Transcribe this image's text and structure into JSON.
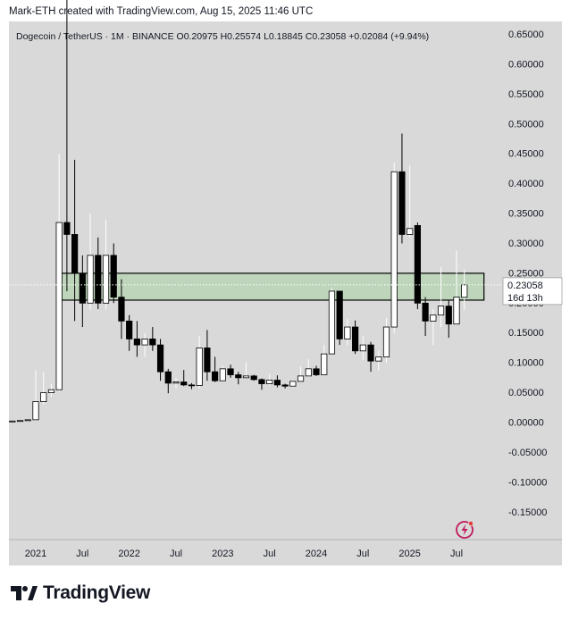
{
  "credit": "Mark-ETH created with TradingView.com, Aug 15, 2025 11:46 UTC",
  "legend": {
    "symbol": "Dogecoin / TetherUS · 1M · BINANCE",
    "open": "O0.20975",
    "high": "H0.25574",
    "low": "L0.18845",
    "close": "C0.23058",
    "change": "+0.02084 (+9.94%)"
  },
  "price_label": {
    "value": "0.23058",
    "countdown": "16d 13h"
  },
  "brand": {
    "wordmark": "TradingView",
    "logo_icon": "tradingview-logo-icon"
  },
  "colors": {
    "background": "#d9d9d9",
    "bull": "#ffffff",
    "bear": "#000000",
    "zone": "#b9d4b5"
  },
  "chart_data": {
    "type": "candlestick",
    "interval": "1M",
    "y_axis": {
      "min": -0.17,
      "max": 0.66,
      "ticks": [
        0.65,
        0.6,
        0.55,
        0.5,
        0.45,
        0.4,
        0.35,
        0.3,
        0.25,
        0.2,
        0.15,
        0.1,
        0.05,
        0.0,
        -0.05,
        -0.1,
        -0.15
      ],
      "tick_labels": [
        "0.65000",
        "0.60000",
        "0.55000",
        "0.50000",
        "0.45000",
        "0.40000",
        "0.35000",
        "0.30000",
        "0.25000",
        "0.20000",
        "0.15000",
        "0.10000",
        "0.05000",
        "0.00000",
        "-0.05000",
        "-0.10000",
        "-0.15000"
      ]
    },
    "x_axis": {
      "labels": [
        "2021",
        "Jul",
        "2022",
        "Jul",
        "2023",
        "Jul",
        "2024",
        "Jul",
        "2025",
        "Jul"
      ],
      "label_months": [
        "2021-01",
        "2021-07",
        "2022-01",
        "2022-07",
        "2023-01",
        "2023-07",
        "2024-01",
        "2024-07",
        "2025-01",
        "2025-07"
      ]
    },
    "grid": false,
    "zone": {
      "low": 0.205,
      "high": 0.25
    },
    "candles": [
      {
        "t": "2020-10",
        "o": 0.0026,
        "h": 0.0033,
        "l": 0.0024,
        "c": 0.0026
      },
      {
        "t": "2020-11",
        "o": 0.0026,
        "h": 0.0036,
        "l": 0.0025,
        "c": 0.0034
      },
      {
        "t": "2020-12",
        "o": 0.0034,
        "h": 0.0053,
        "l": 0.0033,
        "c": 0.0047
      },
      {
        "t": "2021-01",
        "o": 0.0047,
        "h": 0.087,
        "l": 0.0046,
        "c": 0.035
      },
      {
        "t": "2021-02",
        "o": 0.035,
        "h": 0.085,
        "l": 0.03,
        "c": 0.05
      },
      {
        "t": "2021-03",
        "o": 0.05,
        "h": 0.065,
        "l": 0.043,
        "c": 0.055
      },
      {
        "t": "2021-04",
        "o": 0.055,
        "h": 0.45,
        "l": 0.052,
        "c": 0.335
      },
      {
        "t": "2021-05",
        "o": 0.335,
        "h": 0.75,
        "l": 0.22,
        "c": 0.315
      },
      {
        "t": "2021-06",
        "o": 0.315,
        "h": 0.44,
        "l": 0.17,
        "c": 0.25
      },
      {
        "t": "2021-07",
        "o": 0.25,
        "h": 0.28,
        "l": 0.16,
        "c": 0.2
      },
      {
        "t": "2021-08",
        "o": 0.2,
        "h": 0.35,
        "l": 0.19,
        "c": 0.28
      },
      {
        "t": "2021-09",
        "o": 0.28,
        "h": 0.31,
        "l": 0.19,
        "c": 0.2
      },
      {
        "t": "2021-10",
        "o": 0.2,
        "h": 0.34,
        "l": 0.19,
        "c": 0.28
      },
      {
        "t": "2021-11",
        "o": 0.28,
        "h": 0.3,
        "l": 0.2,
        "c": 0.21
      },
      {
        "t": "2021-12",
        "o": 0.21,
        "h": 0.24,
        "l": 0.14,
        "c": 0.17
      },
      {
        "t": "2022-01",
        "o": 0.17,
        "h": 0.18,
        "l": 0.12,
        "c": 0.14
      },
      {
        "t": "2022-02",
        "o": 0.14,
        "h": 0.17,
        "l": 0.11,
        "c": 0.13
      },
      {
        "t": "2022-03",
        "o": 0.13,
        "h": 0.15,
        "l": 0.11,
        "c": 0.14
      },
      {
        "t": "2022-04",
        "o": 0.14,
        "h": 0.16,
        "l": 0.12,
        "c": 0.13
      },
      {
        "t": "2022-05",
        "o": 0.13,
        "h": 0.14,
        "l": 0.07,
        "c": 0.085
      },
      {
        "t": "2022-06",
        "o": 0.085,
        "h": 0.09,
        "l": 0.049,
        "c": 0.066
      },
      {
        "t": "2022-07",
        "o": 0.066,
        "h": 0.075,
        "l": 0.058,
        "c": 0.068
      },
      {
        "t": "2022-08",
        "o": 0.068,
        "h": 0.088,
        "l": 0.061,
        "c": 0.063
      },
      {
        "t": "2022-09",
        "o": 0.063,
        "h": 0.066,
        "l": 0.056,
        "c": 0.062
      },
      {
        "t": "2022-10",
        "o": 0.062,
        "h": 0.145,
        "l": 0.057,
        "c": 0.125
      },
      {
        "t": "2022-11",
        "o": 0.125,
        "h": 0.155,
        "l": 0.07,
        "c": 0.085
      },
      {
        "t": "2022-12",
        "o": 0.085,
        "h": 0.11,
        "l": 0.068,
        "c": 0.07
      },
      {
        "t": "2023-01",
        "o": 0.07,
        "h": 0.095,
        "l": 0.07,
        "c": 0.09
      },
      {
        "t": "2023-02",
        "o": 0.09,
        "h": 0.097,
        "l": 0.075,
        "c": 0.08
      },
      {
        "t": "2023-03",
        "o": 0.08,
        "h": 0.085,
        "l": 0.064,
        "c": 0.075
      },
      {
        "t": "2023-04",
        "o": 0.075,
        "h": 0.1,
        "l": 0.074,
        "c": 0.078
      },
      {
        "t": "2023-05",
        "o": 0.078,
        "h": 0.08,
        "l": 0.07,
        "c": 0.072
      },
      {
        "t": "2023-06",
        "o": 0.072,
        "h": 0.074,
        "l": 0.055,
        "c": 0.065
      },
      {
        "t": "2023-07",
        "o": 0.065,
        "h": 0.081,
        "l": 0.062,
        "c": 0.071
      },
      {
        "t": "2023-08",
        "o": 0.071,
        "h": 0.079,
        "l": 0.059,
        "c": 0.063
      },
      {
        "t": "2023-09",
        "o": 0.063,
        "h": 0.065,
        "l": 0.057,
        "c": 0.061
      },
      {
        "t": "2023-10",
        "o": 0.061,
        "h": 0.071,
        "l": 0.058,
        "c": 0.069
      },
      {
        "t": "2023-11",
        "o": 0.069,
        "h": 0.094,
        "l": 0.068,
        "c": 0.078
      },
      {
        "t": "2023-12",
        "o": 0.078,
        "h": 0.106,
        "l": 0.076,
        "c": 0.09
      },
      {
        "t": "2024-01",
        "o": 0.09,
        "h": 0.095,
        "l": 0.078,
        "c": 0.08
      },
      {
        "t": "2024-02",
        "o": 0.08,
        "h": 0.13,
        "l": 0.079,
        "c": 0.115
      },
      {
        "t": "2024-03",
        "o": 0.115,
        "h": 0.225,
        "l": 0.114,
        "c": 0.22
      },
      {
        "t": "2024-04",
        "o": 0.22,
        "h": 0.22,
        "l": 0.13,
        "c": 0.14
      },
      {
        "t": "2024-05",
        "o": 0.14,
        "h": 0.174,
        "l": 0.129,
        "c": 0.16
      },
      {
        "t": "2024-06",
        "o": 0.16,
        "h": 0.171,
        "l": 0.115,
        "c": 0.12
      },
      {
        "t": "2024-07",
        "o": 0.12,
        "h": 0.145,
        "l": 0.105,
        "c": 0.13
      },
      {
        "t": "2024-08",
        "o": 0.13,
        "h": 0.135,
        "l": 0.085,
        "c": 0.103
      },
      {
        "t": "2024-09",
        "o": 0.103,
        "h": 0.12,
        "l": 0.087,
        "c": 0.11
      },
      {
        "t": "2024-10",
        "o": 0.11,
        "h": 0.175,
        "l": 0.1,
        "c": 0.16
      },
      {
        "t": "2024-11",
        "o": 0.16,
        "h": 0.435,
        "l": 0.15,
        "c": 0.42
      },
      {
        "t": "2024-12",
        "o": 0.42,
        "h": 0.484,
        "l": 0.3,
        "c": 0.315
      },
      {
        "t": "2025-01",
        "o": 0.315,
        "h": 0.43,
        "l": 0.31,
        "c": 0.325
      },
      {
        "t": "2025-02",
        "o": 0.33,
        "h": 0.335,
        "l": 0.19,
        "c": 0.2
      },
      {
        "t": "2025-03",
        "o": 0.2,
        "h": 0.21,
        "l": 0.145,
        "c": 0.17
      },
      {
        "t": "2025-04",
        "o": 0.17,
        "h": 0.19,
        "l": 0.13,
        "c": 0.18
      },
      {
        "t": "2025-05",
        "o": 0.18,
        "h": 0.26,
        "l": 0.16,
        "c": 0.195
      },
      {
        "t": "2025-06",
        "o": 0.195,
        "h": 0.205,
        "l": 0.142,
        "c": 0.165
      },
      {
        "t": "2025-07",
        "o": 0.165,
        "h": 0.288,
        "l": 0.164,
        "c": 0.21
      },
      {
        "t": "2025-08",
        "o": 0.20975,
        "h": 0.25574,
        "l": 0.18845,
        "c": 0.23058
      }
    ]
  }
}
